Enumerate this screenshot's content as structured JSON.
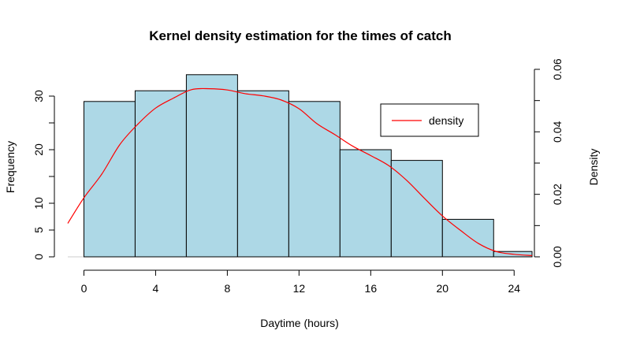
{
  "chart_data": {
    "type": "bar",
    "title": "Kernel density estimation for the times of catch",
    "xlabel": "Daytime (hours)",
    "ylabel": "Frequency",
    "y2label": "Density",
    "bins": [
      {
        "start": 0.0,
        "end": 2.857,
        "value": 29
      },
      {
        "start": 2.857,
        "end": 5.714,
        "value": 31
      },
      {
        "start": 5.714,
        "end": 8.571,
        "value": 34
      },
      {
        "start": 8.571,
        "end": 11.429,
        "value": 31
      },
      {
        "start": 11.429,
        "end": 14.286,
        "value": 29
      },
      {
        "start": 14.286,
        "end": 17.143,
        "value": 20
      },
      {
        "start": 17.143,
        "end": 20.0,
        "value": 18
      },
      {
        "start": 20.0,
        "end": 22.857,
        "value": 7
      },
      {
        "start": 22.857,
        "end": 25.0,
        "value": 1
      }
    ],
    "xlim": [
      -0.9,
      25.0
    ],
    "ylim": [
      0,
      35
    ],
    "y2lim": [
      0,
      0.06
    ],
    "x_ticks": [
      "0",
      "4",
      "8",
      "12",
      "16",
      "20",
      "24"
    ],
    "y_ticks": [
      "0",
      "5",
      "10",
      "20",
      "30"
    ],
    "y2_ticks": [
      "0.00",
      "0.02",
      "0.04",
      "0.06"
    ],
    "bar_color": "#ADD8E6",
    "density_color": "#FF0000",
    "density_curve": {
      "name": "density",
      "x": [
        -0.9,
        0,
        1,
        2,
        3,
        4,
        5,
        6,
        7,
        8,
        9,
        10,
        11,
        12,
        13,
        14,
        15,
        16,
        17,
        18,
        19,
        20,
        21,
        22,
        23,
        24,
        25
      ],
      "y": [
        0.0107,
        0.0189,
        0.0265,
        0.0359,
        0.0424,
        0.0476,
        0.0508,
        0.0535,
        0.0538,
        0.0534,
        0.0522,
        0.0515,
        0.0502,
        0.0474,
        0.0426,
        0.0391,
        0.0354,
        0.0324,
        0.0292,
        0.0245,
        0.0187,
        0.0131,
        0.0085,
        0.0043,
        0.0017,
        0.0008,
        0.0004
      ]
    },
    "legend": {
      "entries": [
        "density"
      ],
      "position": "top-right"
    },
    "grid": false
  }
}
